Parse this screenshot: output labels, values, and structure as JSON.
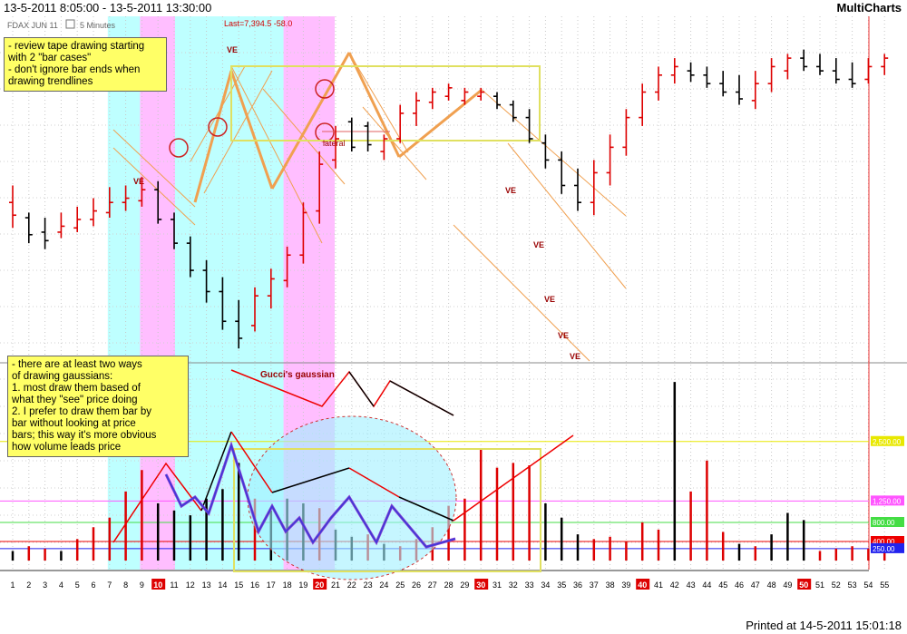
{
  "header": {
    "title": "13-5-2011 8:05:00 - 13-5-2011 13:30:00",
    "brand": "MultiCharts"
  },
  "symbol": {
    "name": "FDAX JUN 11",
    "interval": "5 Minutes"
  },
  "last_label": "Last=7,394.5 -58.0",
  "notes": {
    "top": "- review tape drawing starting\nwith 2 \"bar cases\"\n- don't ignore bar ends when\ndrawing trendlines",
    "bottom": "- there are at least two ways\nof drawing gaussians:\n1. most draw them based of\nwhat they \"see\" price doing\n2. I prefer to draw them bar by\nbar without looking at price\nbars; this way it's more obvious\nhow volume leads price"
  },
  "annotations": {
    "gaussian": "Gucci's gaussian",
    "lateral": "lateral",
    "ve": "VE"
  },
  "footer": {
    "printed": "Printed at 14-5-2011 15:01:18"
  },
  "colors": {
    "up": "#000000",
    "down": "#dd0000",
    "cyan": "#b3ffff",
    "magenta": "#ffb3ff",
    "orange": "#f0a050"
  },
  "chart_data": {
    "type": "bar",
    "bar_count": 55,
    "x_labels": [
      "1",
      "2",
      "3",
      "4",
      "5",
      "6",
      "7",
      "8",
      "9",
      "10",
      "11",
      "12",
      "13",
      "14",
      "15",
      "16",
      "17",
      "18",
      "19",
      "20",
      "21",
      "22",
      "23",
      "24",
      "25",
      "26",
      "27",
      "28",
      "29",
      "30",
      "31",
      "32",
      "33",
      "34",
      "35",
      "36",
      "37",
      "38",
      "39",
      "40",
      "41",
      "42",
      "43",
      "44",
      "45",
      "46",
      "47",
      "48",
      "49",
      "50",
      "51",
      "52",
      "53",
      "54",
      "55"
    ],
    "x_highlight": [
      "10",
      "20",
      "30",
      "40",
      "50"
    ],
    "volume_levels": [
      {
        "label": "2,500.00",
        "value": 2500,
        "color": "#e8e800"
      },
      {
        "label": "1,250.00",
        "value": 1250,
        "color": "#ff55ff"
      },
      {
        "label": "800.00",
        "value": 800,
        "color": "#44dd44"
      },
      {
        "label": "400.00",
        "value": 400,
        "color": "#ee0000"
      },
      {
        "label": "250.00",
        "value": 250,
        "color": "#2222ee"
      }
    ],
    "price_bars": [
      {
        "h": 0.18,
        "l": 0.23,
        "o": 0.2,
        "c": 0.215,
        "d": 0
      },
      {
        "h": 0.212,
        "l": 0.248,
        "o": 0.218,
        "c": 0.238,
        "d": 1
      },
      {
        "h": 0.218,
        "l": 0.255,
        "o": 0.235,
        "c": 0.245,
        "d": 1
      },
      {
        "h": 0.212,
        "l": 0.242,
        "o": 0.235,
        "c": 0.228,
        "d": 0
      },
      {
        "h": 0.205,
        "l": 0.235,
        "o": 0.23,
        "c": 0.22,
        "d": 0
      },
      {
        "h": 0.195,
        "l": 0.228,
        "o": 0.22,
        "c": 0.21,
        "d": 0
      },
      {
        "h": 0.182,
        "l": 0.218,
        "o": 0.212,
        "c": 0.2,
        "d": 0
      },
      {
        "h": 0.18,
        "l": 0.21,
        "o": 0.2,
        "c": 0.195,
        "d": 0
      },
      {
        "h": 0.17,
        "l": 0.205,
        "o": 0.198,
        "c": 0.185,
        "d": 0
      },
      {
        "h": 0.175,
        "l": 0.225,
        "o": 0.185,
        "c": 0.22,
        "d": 1
      },
      {
        "h": 0.212,
        "l": 0.255,
        "o": 0.22,
        "c": 0.248,
        "d": 1
      },
      {
        "h": 0.24,
        "l": 0.288,
        "o": 0.248,
        "c": 0.28,
        "d": 1
      },
      {
        "h": 0.268,
        "l": 0.318,
        "o": 0.28,
        "c": 0.305,
        "d": 1
      },
      {
        "h": 0.288,
        "l": 0.35,
        "o": 0.305,
        "c": 0.34,
        "d": 1
      },
      {
        "h": 0.315,
        "l": 0.372,
        "o": 0.34,
        "c": 0.36,
        "d": 1
      },
      {
        "h": 0.3,
        "l": 0.352,
        "o": 0.345,
        "c": 0.31,
        "d": 0
      },
      {
        "h": 0.278,
        "l": 0.325,
        "o": 0.31,
        "c": 0.29,
        "d": 0
      },
      {
        "h": 0.252,
        "l": 0.3,
        "o": 0.292,
        "c": 0.262,
        "d": 0
      },
      {
        "h": 0.2,
        "l": 0.272,
        "o": 0.262,
        "c": 0.212,
        "d": 0
      },
      {
        "h": 0.14,
        "l": 0.225,
        "o": 0.21,
        "c": 0.155,
        "d": 0
      },
      {
        "h": 0.11,
        "l": 0.16,
        "o": 0.15,
        "c": 0.125,
        "d": 0
      },
      {
        "h": 0.1,
        "l": 0.14,
        "o": 0.105,
        "c": 0.135,
        "d": 1
      },
      {
        "h": 0.105,
        "l": 0.14,
        "o": 0.11,
        "c": 0.132,
        "d": 1
      },
      {
        "h": 0.12,
        "l": 0.15,
        "o": 0.14,
        "c": 0.125,
        "d": 0
      },
      {
        "h": 0.085,
        "l": 0.13,
        "o": 0.125,
        "c": 0.095,
        "d": 0
      },
      {
        "h": 0.07,
        "l": 0.11,
        "o": 0.095,
        "c": 0.08,
        "d": 0
      },
      {
        "h": 0.065,
        "l": 0.09,
        "o": 0.082,
        "c": 0.07,
        "d": 0
      },
      {
        "h": 0.06,
        "l": 0.08,
        "o": 0.075,
        "c": 0.065,
        "d": 0
      },
      {
        "h": 0.065,
        "l": 0.085,
        "o": 0.08,
        "c": 0.07,
        "d": 0
      },
      {
        "h": 0.065,
        "l": 0.08,
        "o": 0.075,
        "c": 0.07,
        "d": 0
      },
      {
        "h": 0.07,
        "l": 0.09,
        "o": 0.075,
        "c": 0.085,
        "d": 1
      },
      {
        "h": 0.08,
        "l": 0.105,
        "o": 0.085,
        "c": 0.1,
        "d": 1
      },
      {
        "h": 0.09,
        "l": 0.13,
        "o": 0.1,
        "c": 0.125,
        "d": 1
      },
      {
        "h": 0.12,
        "l": 0.16,
        "o": 0.13,
        "c": 0.15,
        "d": 1
      },
      {
        "h": 0.14,
        "l": 0.19,
        "o": 0.15,
        "c": 0.18,
        "d": 1
      },
      {
        "h": 0.16,
        "l": 0.21,
        "o": 0.18,
        "c": 0.2,
        "d": 1
      },
      {
        "h": 0.15,
        "l": 0.215,
        "o": 0.2,
        "c": 0.165,
        "d": 0
      },
      {
        "h": 0.12,
        "l": 0.18,
        "o": 0.165,
        "c": 0.135,
        "d": 0
      },
      {
        "h": 0.09,
        "l": 0.145,
        "o": 0.135,
        "c": 0.1,
        "d": 0
      },
      {
        "h": 0.06,
        "l": 0.11,
        "o": 0.1,
        "c": 0.07,
        "d": 0
      },
      {
        "h": 0.04,
        "l": 0.08,
        "o": 0.07,
        "c": 0.05,
        "d": 0
      },
      {
        "h": 0.03,
        "l": 0.06,
        "o": 0.05,
        "c": 0.04,
        "d": 0
      },
      {
        "h": 0.035,
        "l": 0.058,
        "o": 0.045,
        "c": 0.05,
        "d": 1
      },
      {
        "h": 0.04,
        "l": 0.065,
        "o": 0.05,
        "c": 0.06,
        "d": 1
      },
      {
        "h": 0.045,
        "l": 0.075,
        "o": 0.06,
        "c": 0.07,
        "d": 1
      },
      {
        "h": 0.05,
        "l": 0.085,
        "o": 0.07,
        "c": 0.078,
        "d": 1
      },
      {
        "h": 0.045,
        "l": 0.09,
        "o": 0.08,
        "c": 0.06,
        "d": 0
      },
      {
        "h": 0.03,
        "l": 0.07,
        "o": 0.06,
        "c": 0.04,
        "d": 0
      },
      {
        "h": 0.025,
        "l": 0.055,
        "o": 0.045,
        "c": 0.03,
        "d": 0
      },
      {
        "h": 0.02,
        "l": 0.045,
        "o": 0.03,
        "c": 0.04,
        "d": 1
      },
      {
        "h": 0.025,
        "l": 0.05,
        "o": 0.04,
        "c": 0.045,
        "d": 1
      },
      {
        "h": 0.03,
        "l": 0.06,
        "o": 0.045,
        "c": 0.055,
        "d": 1
      },
      {
        "h": 0.035,
        "l": 0.065,
        "o": 0.055,
        "c": 0.06,
        "d": 1
      },
      {
        "h": 0.03,
        "l": 0.06,
        "o": 0.055,
        "c": 0.04,
        "d": 0
      },
      {
        "h": 0.025,
        "l": 0.05,
        "o": 0.04,
        "c": 0.03,
        "d": 0
      }
    ],
    "volume": [
      {
        "v": 200,
        "d": 0
      },
      {
        "v": 300,
        "d": 1
      },
      {
        "v": 250,
        "d": 1
      },
      {
        "v": 200,
        "d": 0
      },
      {
        "v": 450,
        "d": 1
      },
      {
        "v": 700,
        "d": 1
      },
      {
        "v": 900,
        "d": 1
      },
      {
        "v": 1450,
        "d": 1
      },
      {
        "v": 1900,
        "d": 1
      },
      {
        "v": 1200,
        "d": 0
      },
      {
        "v": 1050,
        "d": 0
      },
      {
        "v": 950,
        "d": 0
      },
      {
        "v": 1300,
        "d": 0
      },
      {
        "v": 1500,
        "d": 0
      },
      {
        "v": 2050,
        "d": 0
      },
      {
        "v": 1300,
        "d": 1
      },
      {
        "v": 1050,
        "d": 0
      },
      {
        "v": 1300,
        "d": 0
      },
      {
        "v": 1200,
        "d": 0
      },
      {
        "v": 1100,
        "d": 1
      },
      {
        "v": 650,
        "d": 0
      },
      {
        "v": 500,
        "d": 0
      },
      {
        "v": 550,
        "d": 1
      },
      {
        "v": 350,
        "d": 0
      },
      {
        "v": 300,
        "d": 1
      },
      {
        "v": 450,
        "d": 1
      },
      {
        "v": 700,
        "d": 1
      },
      {
        "v": 1150,
        "d": 1
      },
      {
        "v": 1300,
        "d": 1
      },
      {
        "v": 2350,
        "d": 1
      },
      {
        "v": 1950,
        "d": 1
      },
      {
        "v": 2050,
        "d": 1
      },
      {
        "v": 2000,
        "d": 1
      },
      {
        "v": 1200,
        "d": 0
      },
      {
        "v": 900,
        "d": 0
      },
      {
        "v": 550,
        "d": 0
      },
      {
        "v": 450,
        "d": 1
      },
      {
        "v": 500,
        "d": 1
      },
      {
        "v": 400,
        "d": 1
      },
      {
        "v": 800,
        "d": 1
      },
      {
        "v": 650,
        "d": 1
      },
      {
        "v": 3750,
        "d": 0
      },
      {
        "v": 1450,
        "d": 1
      },
      {
        "v": 2100,
        "d": 1
      },
      {
        "v": 600,
        "d": 1
      },
      {
        "v": 350,
        "d": 0
      },
      {
        "v": 300,
        "d": 1
      },
      {
        "v": 550,
        "d": 0
      },
      {
        "v": 1000,
        "d": 0
      },
      {
        "v": 850,
        "d": 0
      },
      {
        "v": 200,
        "d": 1
      },
      {
        "v": 250,
        "d": 1
      },
      {
        "v": 300,
        "d": 1
      },
      {
        "v": 250,
        "d": 1
      },
      {
        "v": 300,
        "d": 1
      }
    ]
  }
}
